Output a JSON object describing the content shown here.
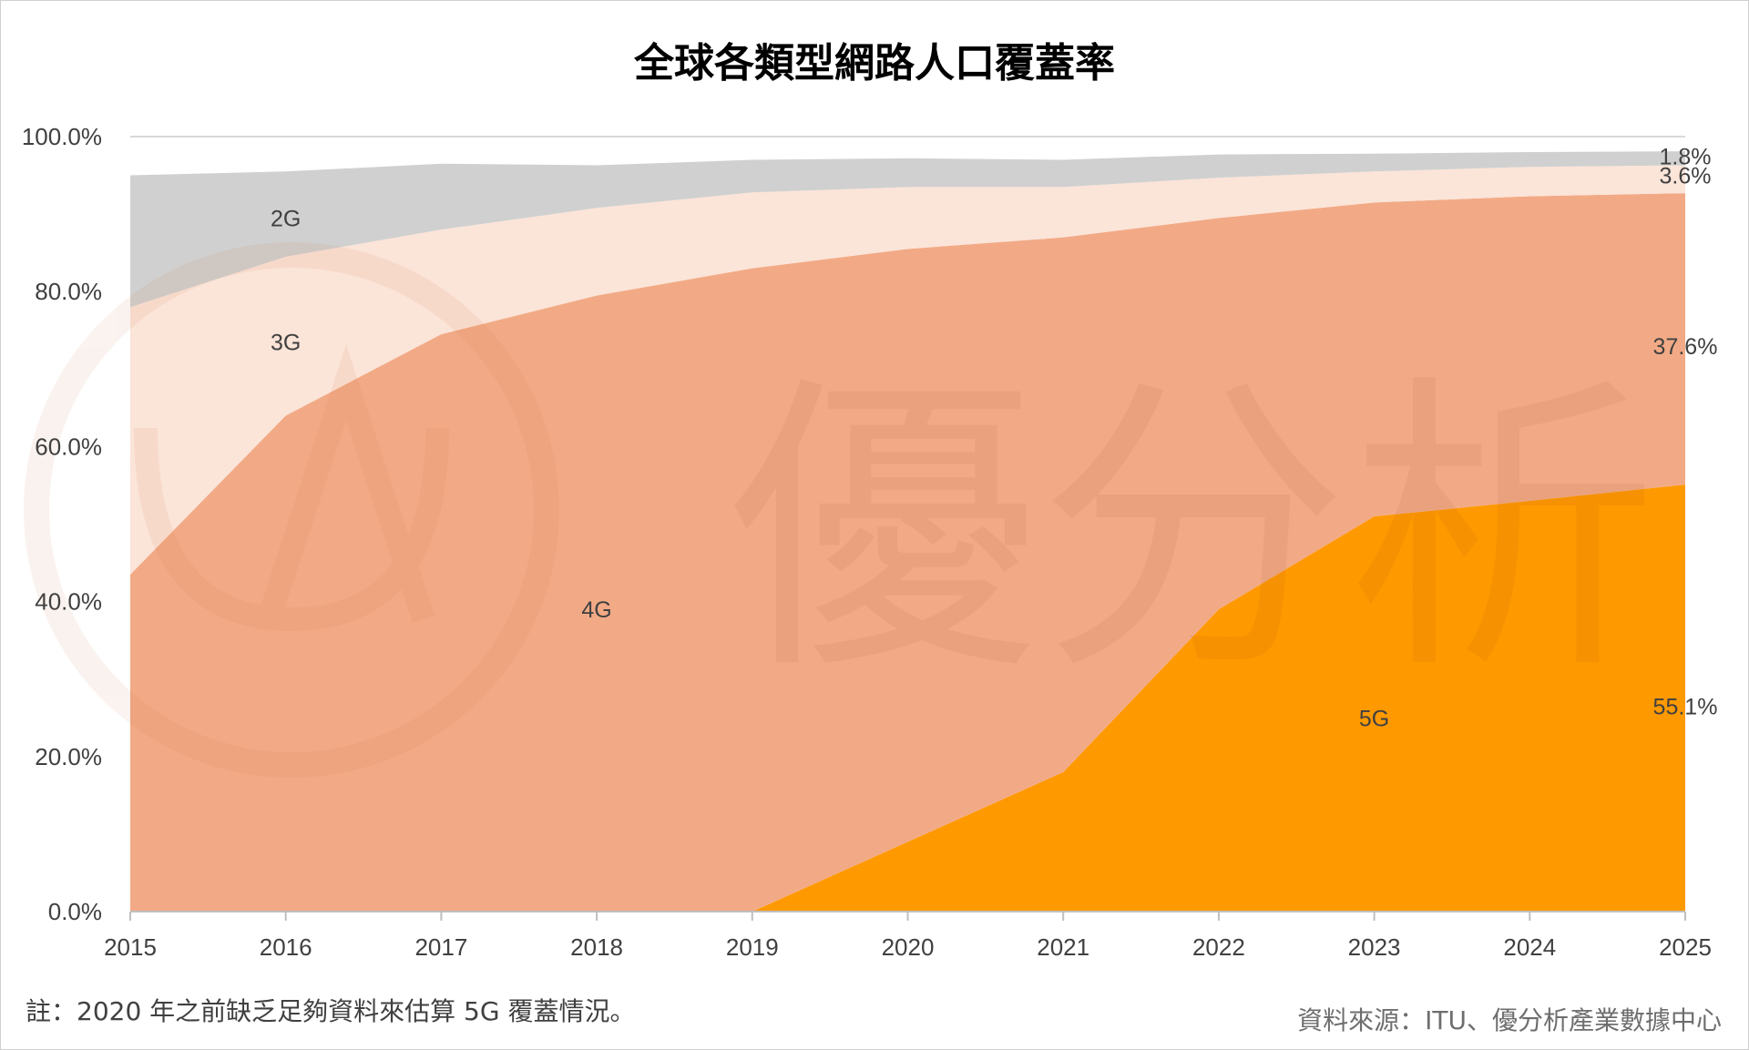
{
  "chart_data": {
    "type": "area",
    "stacked": true,
    "title": "全球各類型網路人口覆蓋率",
    "x": [
      "2015",
      "2016",
      "2017",
      "2018",
      "2019",
      "2020",
      "2021",
      "2022",
      "2023",
      "2024",
      "2025"
    ],
    "ylim": [
      0,
      100
    ],
    "yticks": [
      "0.0%",
      "20.0%",
      "40.0%",
      "60.0%",
      "80.0%",
      "100.0%"
    ],
    "grid": true,
    "legend": "none",
    "series": [
      {
        "name": "5G",
        "color": "#ff9900",
        "values": [
          0,
          0,
          0,
          0,
          0,
          9,
          18,
          39,
          51,
          53,
          55.1
        ]
      },
      {
        "name": "4G",
        "color": "#f2aa86",
        "values": [
          43.5,
          64,
          74.5,
          79.5,
          83,
          76.5,
          69,
          50.5,
          40.5,
          39.3,
          37.6
        ]
      },
      {
        "name": "3G",
        "color": "#fbe4d8",
        "values": [
          34.5,
          20.5,
          13.5,
          11.3,
          9.8,
          8,
          6.5,
          5.2,
          4,
          3.8,
          3.6
        ]
      },
      {
        "name": "2G",
        "color": "#d0d0d0",
        "values": [
          17,
          11,
          8.5,
          5.5,
          4.2,
          3.7,
          3.5,
          3.0,
          2.3,
          1.9,
          1.8
        ]
      }
    ],
    "series_labels": [
      {
        "text": "2G",
        "x": "2016",
        "y": 89.5
      },
      {
        "text": "3G",
        "x": "2016",
        "y": 73.5
      },
      {
        "text": "4G",
        "x": "2018",
        "y": 39.0
      },
      {
        "text": "5G",
        "x": "2023",
        "y": 25.0
      }
    ],
    "value_labels": [
      {
        "text": "1.8%",
        "x": "2025",
        "y": 97.5
      },
      {
        "text": "3.6%",
        "x": "2025",
        "y": 95.0
      },
      {
        "text": "37.6%",
        "x": "2025",
        "y": 73.0
      },
      {
        "text": "55.1%",
        "x": "2025",
        "y": 26.5
      }
    ]
  },
  "watermark_text": "優分析",
  "note": "註：2020 年之前缺乏足夠資料來估算 5G 覆蓋情況。",
  "source": "資料來源：ITU、優分析產業數據中心"
}
